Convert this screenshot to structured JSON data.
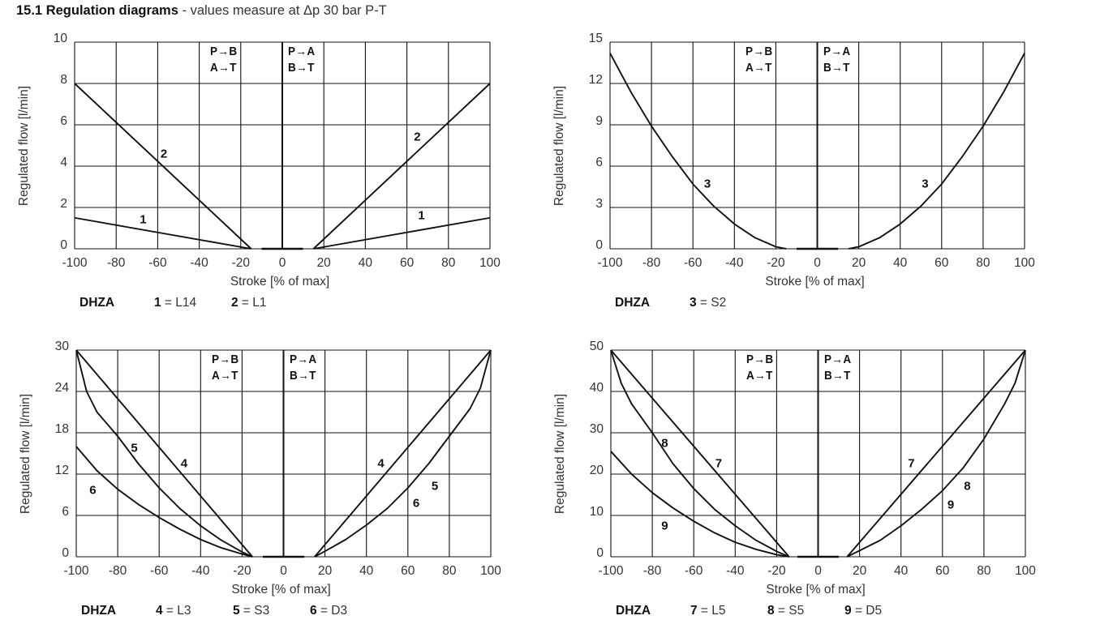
{
  "title": {
    "bold": "15.1 Regulation diagrams",
    "rest": "- values measure at Δp 30 bar P-T"
  },
  "flow_labels": {
    "left_top": "P→B",
    "left_bottom": "A→T",
    "right_top": "P→A",
    "right_bottom": "B→T"
  },
  "chart_data": [
    {
      "type": "line",
      "xlabel": "Stroke [% of max]",
      "ylabel": "Regulated flow [l/min]",
      "xlim": [
        -100,
        100
      ],
      "ylim": [
        0,
        10
      ],
      "xticks": [
        -100,
        -80,
        -60,
        -40,
        -20,
        0,
        20,
        40,
        60,
        80,
        100
      ],
      "yticks": [
        0,
        2,
        4,
        6,
        8,
        10
      ],
      "grid": true,
      "legend": {
        "model": "DHZA",
        "entries": [
          {
            "num": "1",
            "code": "L14"
          },
          {
            "num": "2",
            "code": "L1"
          }
        ]
      },
      "series": [
        {
          "name": "1",
          "x": [
            -100,
            -15
          ],
          "y": [
            1.5,
            0
          ]
        },
        {
          "name": "1",
          "x": [
            15,
            100
          ],
          "y": [
            0,
            1.5
          ]
        },
        {
          "name": "2",
          "x": [
            -100,
            -15
          ],
          "y": [
            8,
            0
          ]
        },
        {
          "name": "2",
          "x": [
            15,
            100
          ],
          "y": [
            0,
            8
          ]
        }
      ],
      "annotations": [
        {
          "text": "2",
          "x": -57,
          "y": 4.6
        },
        {
          "text": "2",
          "x": 65,
          "y": 5.4
        },
        {
          "text": "1",
          "x": -67,
          "y": 1.4
        },
        {
          "text": "1",
          "x": 67,
          "y": 1.6
        }
      ]
    },
    {
      "type": "line",
      "xlabel": "Stroke [% of max]",
      "ylabel": "Regulated flow [l/min]",
      "xlim": [
        -100,
        100
      ],
      "ylim": [
        0,
        15
      ],
      "xticks": [
        -100,
        -80,
        -60,
        -40,
        -20,
        0,
        20,
        40,
        60,
        80,
        100
      ],
      "yticks": [
        0,
        3,
        6,
        9,
        12,
        15
      ],
      "grid": true,
      "legend": {
        "model": "DHZA",
        "entries": [
          {
            "num": "3",
            "code": "S2"
          }
        ]
      },
      "series": [
        {
          "name": "3",
          "x": [
            -100,
            -90,
            -80,
            -70,
            -60,
            -50,
            -40,
            -30,
            -20,
            -15
          ],
          "y": [
            14.2,
            11.4,
            8.9,
            6.7,
            4.7,
            3.1,
            1.8,
            0.8,
            0.15,
            0
          ]
        },
        {
          "name": "3",
          "x": [
            15,
            20,
            30,
            40,
            50,
            60,
            70,
            80,
            90,
            100
          ],
          "y": [
            0,
            0.15,
            0.8,
            1.8,
            3.1,
            4.7,
            6.7,
            8.9,
            11.4,
            14.2
          ]
        }
      ],
      "annotations": [
        {
          "text": "3",
          "x": -53,
          "y": 4.7
        },
        {
          "text": "3",
          "x": 52,
          "y": 4.7
        }
      ]
    },
    {
      "type": "line",
      "xlabel": "Stroke [% of max]",
      "ylabel": "Regulated flow [l/min]",
      "xlim": [
        -100,
        100
      ],
      "ylim": [
        0,
        30
      ],
      "xticks": [
        -100,
        -80,
        -60,
        -40,
        -20,
        0,
        20,
        40,
        60,
        80,
        100
      ],
      "yticks": [
        0,
        6,
        12,
        18,
        24,
        30
      ],
      "grid": true,
      "legend": {
        "model": "DHZA",
        "entries": [
          {
            "num": "4",
            "code": "L3"
          },
          {
            "num": "5",
            "code": "S3"
          },
          {
            "num": "6",
            "code": "D3"
          }
        ]
      },
      "series": [
        {
          "name": "4",
          "x": [
            -100,
            -15
          ],
          "y": [
            30,
            0
          ]
        },
        {
          "name": "4",
          "x": [
            15,
            100
          ],
          "y": [
            0,
            30
          ]
        },
        {
          "name": "5",
          "x": [
            -100,
            -95,
            -90,
            -80,
            -70,
            -60,
            -50,
            -40,
            -30,
            -20,
            -15
          ],
          "y": [
            30,
            24,
            21,
            17.5,
            13.5,
            10,
            7,
            4.5,
            2.4,
            0.7,
            0
          ]
        },
        {
          "name": "5",
          "x": [
            15,
            20,
            30,
            40,
            50,
            60,
            70,
            80,
            90,
            95,
            100
          ],
          "y": [
            0,
            0.8,
            2.5,
            4.6,
            7,
            10,
            13.5,
            17.5,
            21.5,
            24.5,
            30
          ]
        },
        {
          "name": "6",
          "x": [
            -100,
            -90,
            -80,
            -70,
            -60,
            -50,
            -40,
            -30,
            -20,
            -15
          ],
          "y": [
            16,
            12.5,
            9.8,
            7.6,
            5.7,
            4,
            2.5,
            1.3,
            0.4,
            0
          ]
        }
      ],
      "annotations": [
        {
          "text": "5",
          "x": -72,
          "y": 15.8
        },
        {
          "text": "4",
          "x": -48,
          "y": 13.5
        },
        {
          "text": "6",
          "x": -92,
          "y": 9.7
        },
        {
          "text": "4",
          "x": 47,
          "y": 13.5
        },
        {
          "text": "5",
          "x": 73,
          "y": 10.2
        },
        {
          "text": "6",
          "x": 64,
          "y": 7.8
        }
      ]
    },
    {
      "type": "line",
      "xlabel": "Stroke [% of max]",
      "ylabel": "Regulated flow [l/min]",
      "xlim": [
        -100,
        100
      ],
      "ylim": [
        0,
        50
      ],
      "xticks": [
        -100,
        -80,
        -60,
        -40,
        -20,
        0,
        20,
        40,
        60,
        80,
        100
      ],
      "yticks": [
        0,
        10,
        20,
        30,
        40,
        50
      ],
      "grid": true,
      "legend": {
        "model": "DHZA",
        "entries": [
          {
            "num": "7",
            "code": "L5"
          },
          {
            "num": "8",
            "code": "S5"
          },
          {
            "num": "9",
            "code": "D5"
          }
        ]
      },
      "series": [
        {
          "name": "7",
          "x": [
            -100,
            -14
          ],
          "y": [
            50,
            0
          ]
        },
        {
          "name": "7",
          "x": [
            14,
            100
          ],
          "y": [
            0,
            50
          ]
        },
        {
          "name": "8",
          "x": [
            -100,
            -95,
            -90,
            -80,
            -70,
            -60,
            -50,
            -40,
            -30,
            -20,
            -14
          ],
          "y": [
            50,
            42,
            37,
            30,
            22.5,
            16.5,
            11.5,
            7.5,
            4,
            1.3,
            0
          ]
        },
        {
          "name": "8",
          "x": [
            14,
            20,
            30,
            40,
            50,
            60,
            70,
            80,
            90,
            95,
            100
          ],
          "y": [
            0,
            1.5,
            4,
            7.5,
            11.5,
            16,
            21.5,
            28.5,
            37,
            42,
            50
          ]
        },
        {
          "name": "9",
          "x": [
            -100,
            -90,
            -80,
            -70,
            -60,
            -50,
            -40,
            -30,
            -20,
            -14
          ],
          "y": [
            25.5,
            20,
            15.5,
            11.8,
            8.6,
            5.8,
            3.5,
            1.8,
            0.5,
            0
          ]
        }
      ],
      "annotations": [
        {
          "text": "8",
          "x": -74,
          "y": 27.5
        },
        {
          "text": "7",
          "x": -48,
          "y": 22.5
        },
        {
          "text": "9",
          "x": -74,
          "y": 7.5
        },
        {
          "text": "7",
          "x": 45,
          "y": 22.5
        },
        {
          "text": "8",
          "x": 72,
          "y": 17
        },
        {
          "text": "9",
          "x": 64,
          "y": 12.5
        }
      ]
    }
  ]
}
